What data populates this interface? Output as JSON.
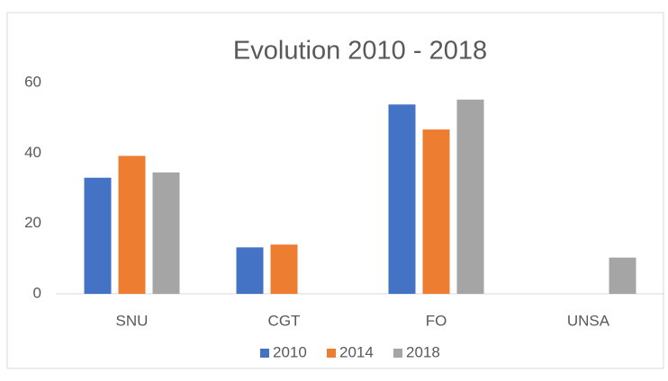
{
  "chart_data": {
    "type": "bar",
    "title": "Evolution 2010 - 2018",
    "categories": [
      "SNU",
      "CGT",
      "FO",
      "UNSA"
    ],
    "series": [
      {
        "name": "2010",
        "color": "#4472c4",
        "values": [
          33,
          13.2,
          53.8,
          null
        ]
      },
      {
        "name": "2014",
        "color": "#ed7d31",
        "values": [
          39.2,
          14,
          46.7,
          null
        ]
      },
      {
        "name": "2018",
        "color": "#a5a5a5",
        "values": [
          34.5,
          null,
          55.2,
          10.3
        ]
      }
    ],
    "ylim": [
      0,
      60
    ],
    "yticks": [
      0,
      20,
      40,
      60
    ],
    "grid": false,
    "legend": "bottom"
  }
}
